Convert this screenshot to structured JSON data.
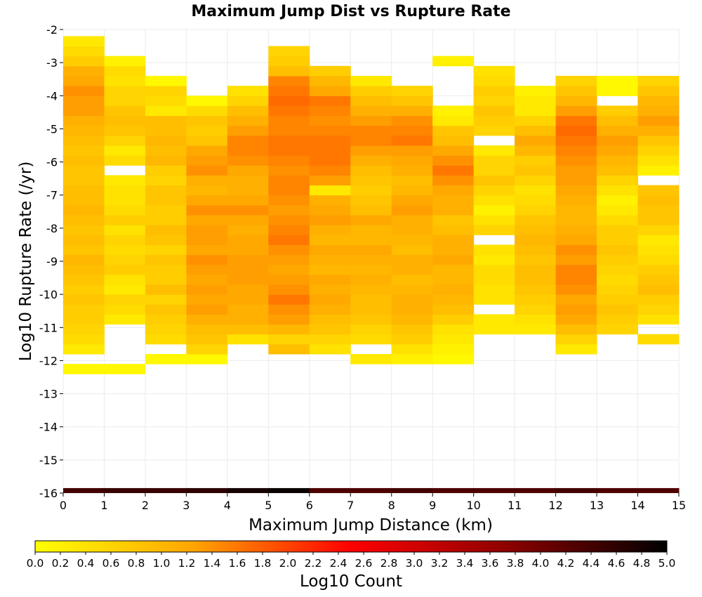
{
  "chart_data": {
    "type": "heatmap",
    "title": "Maximum Jump Dist vs Rupture Rate",
    "xlabel": "Maximum Jump Distance (km)",
    "ylabel": "Log10 Rupture Rate (/yr)",
    "xlim": [
      0,
      15
    ],
    "ylim": [
      -16,
      -2
    ],
    "x_ticks": [
      "0",
      "1",
      "2",
      "3",
      "4",
      "5",
      "6",
      "7",
      "8",
      "9",
      "10",
      "11",
      "12",
      "13",
      "14",
      "15"
    ],
    "y_ticks": [
      "-2",
      "-3",
      "-4",
      "-5",
      "-6",
      "-7",
      "-8",
      "-9",
      "-10",
      "-11",
      "-12",
      "-13",
      "-14",
      "-15",
      "-16"
    ],
    "grid": true,
    "x_bin_width": 1,
    "y_bin_height": 0.3,
    "colorbar": {
      "label": "Log10 Count",
      "min": 0.0,
      "max": 5.0,
      "ticks": [
        "0.0",
        "0.2",
        "0.4",
        "0.6",
        "0.8",
        "1.0",
        "1.2",
        "1.4",
        "1.6",
        "1.8",
        "2.0",
        "2.2",
        "2.4",
        "2.6",
        "2.8",
        "3.0",
        "3.2",
        "3.4",
        "3.6",
        "3.8",
        "4.0",
        "4.2",
        "4.4",
        "4.6",
        "4.8",
        "5.0"
      ],
      "colors": [
        "#ffff00",
        "#ffa500",
        "#ff0000",
        "#8b0000",
        "#000000"
      ]
    },
    "columns": [
      {
        "x": 0,
        "ylow": -12.4,
        "values": [
          0.1,
          0,
          0.3,
          0.5,
          0.6,
          0.7,
          0.7,
          0.8,
          0.7,
          0.8,
          0.9,
          1.0,
          0.8,
          0.9,
          0.8,
          0.9,
          1.0,
          0.9,
          0.9,
          0.8,
          0.8,
          0.9,
          0.8,
          0.9,
          1.0,
          1.1,
          1.3,
          1.3,
          1.4,
          1.2,
          1.1,
          0.7,
          0.5,
          0.3
        ]
      },
      {
        "x": 1,
        "ylow": -12.4,
        "values": [
          0.1,
          0,
          0,
          0,
          0,
          0.3,
          0.5,
          0.6,
          0.3,
          0.4,
          0.7,
          0.6,
          0.5,
          0.6,
          0.4,
          0.7,
          0.5,
          0.4,
          0.4,
          0.3,
          0,
          0.5,
          0.3,
          0.6,
          0.8,
          0.9,
          0.8,
          0.6,
          0.6,
          0.4,
          0.5,
          0.2
        ]
      },
      {
        "x": 2,
        "ylow": -12.1,
        "values": [
          0.1,
          0,
          0.5,
          0.6,
          0.7,
          0.8,
          0.6,
          0.9,
          0.7,
          0.7,
          0.8,
          0.6,
          0.8,
          0.9,
          0.7,
          0.7,
          0.8,
          0.8,
          0.6,
          0.7,
          1.0,
          0.9,
          1.0,
          0.9,
          0.9,
          0.3,
          0.5,
          0.6,
          0.1
        ]
      },
      {
        "x": 3,
        "ylow": -12.1,
        "values": [
          0.1,
          0.6,
          0.8,
          0.9,
          1.1,
          1.3,
          1.2,
          1.3,
          1.2,
          1.3,
          1.4,
          1.2,
          1.3,
          1.3,
          1.2,
          1.4,
          1.2,
          1.0,
          1.1,
          1.4,
          1.3,
          1.2,
          0.8,
          0.7,
          0.8,
          0.5,
          0.1
        ]
      },
      {
        "x": 4,
        "ylow": -11.5,
        "values": [
          0.4,
          0.9,
          1.1,
          1.1,
          1.2,
          1.2,
          1.3,
          1.3,
          1.3,
          1.2,
          1.2,
          1.1,
          1.2,
          1.4,
          1.2,
          1.1,
          1.1,
          1.2,
          1.4,
          1.5,
          1.5,
          1.3,
          1.1,
          0.9,
          0.6,
          0.4
        ]
      },
      {
        "x": 5,
        "ylow": -11.8,
        "values": [
          0.9,
          0.6,
          1.0,
          1.3,
          1.4,
          1.6,
          1.4,
          1.3,
          1.2,
          1.3,
          1.4,
          1.6,
          1.5,
          1.4,
          1.3,
          1.4,
          1.5,
          1.5,
          1.4,
          1.5,
          1.6,
          1.6,
          1.5,
          1.5,
          1.6,
          1.7,
          1.6,
          1.5,
          0.9,
          0.7,
          0.6
        ]
      },
      {
        "x": 6,
        "ylow": -11.8,
        "values": [
          0.4,
          0.6,
          0.8,
          0.9,
          1.1,
          1.2,
          1.1,
          1.2,
          1.0,
          1.1,
          1.2,
          1.0,
          1.1,
          1.3,
          1.2,
          1.1,
          0.3,
          1.3,
          1.5,
          1.6,
          1.6,
          1.6,
          1.5,
          1.4,
          1.5,
          1.6,
          1.2,
          1.0,
          0.7
        ]
      },
      {
        "x": 7,
        "ylow": -12.1,
        "values": [
          0.3,
          0,
          0.5,
          0.6,
          0.8,
          0.9,
          0.9,
          1.0,
          1.1,
          1.0,
          1.1,
          1.2,
          1.0,
          1.0,
          1.2,
          0.9,
          0.8,
          0.7,
          0.8,
          0.9,
          1.1,
          1.3,
          1.5,
          1.5,
          1.3,
          1.1,
          0.9,
          0.7,
          0.3
        ]
      },
      {
        "x": 8,
        "ylow": -12.1,
        "values": [
          0.2,
          0.4,
          0.7,
          0.8,
          1.0,
          1.1,
          1.1,
          1.0,
          0.9,
          1.1,
          1.1,
          0.9,
          1.0,
          1.1,
          1.1,
          1.3,
          1.2,
          1.0,
          0.9,
          1.1,
          1.2,
          1.3,
          1.6,
          1.5,
          1.4,
          1.1,
          0.8,
          0.6
        ]
      },
      {
        "x": 9,
        "ylow": -12.1,
        "values": [
          0.1,
          0.2,
          0.3,
          0.4,
          0.7,
          0.9,
          1.0,
          1.1,
          1.0,
          1.0,
          1.2,
          1.1,
          1.1,
          0.9,
          0.8,
          1.1,
          1.1,
          1.2,
          1.4,
          1.6,
          1.4,
          1.2,
          0.9,
          0.8,
          0.3,
          0.2,
          0,
          0,
          0,
          0,
          0.2
        ]
      },
      {
        "x": 10,
        "ylow": -11.2,
        "values": [
          0.3,
          0.3,
          0,
          0.4,
          0.4,
          0.5,
          0.5,
          0.3,
          0.4,
          0,
          0.6,
          0.4,
          0.2,
          0.4,
          0.6,
          0.8,
          0.6,
          0.6,
          0.3,
          0,
          0.6,
          0.7,
          0.8,
          0.6,
          0.7,
          0.5,
          0.4
        ]
      },
      {
        "x": 11,
        "ylow": -11.2,
        "values": [
          0.3,
          0.4,
          0.6,
          0.7,
          0.8,
          0.9,
          0.9,
          0.8,
          0.9,
          1.0,
          0.9,
          0.8,
          0.6,
          0.5,
          0.4,
          0.6,
          0.8,
          0.7,
          1.0,
          1.2,
          0.9,
          0.6,
          0.3,
          0.3,
          0.2
        ]
      },
      {
        "x": 12,
        "ylow": -11.8,
        "values": [
          0.3,
          0.6,
          0.9,
          1.2,
          1.3,
          1.2,
          1.4,
          1.5,
          1.5,
          1.3,
          1.4,
          1.2,
          1.1,
          1.0,
          1.0,
          1.1,
          1.2,
          1.3,
          1.3,
          1.4,
          1.5,
          1.6,
          1.7,
          1.6,
          1.3,
          1.0,
          0.8,
          0.6
        ]
      },
      {
        "x": 13,
        "ylow": -11.2,
        "values": [
          0.6,
          0.7,
          0.8,
          0.7,
          0.6,
          0.5,
          0.6,
          0.7,
          0.8,
          0.7,
          0.7,
          0.5,
          0.3,
          0.2,
          0.4,
          0.6,
          0.9,
          1.0,
          1.2,
          1.3,
          1.1,
          0.9,
          0.7,
          0,
          0.1,
          0.1
        ]
      },
      {
        "x": 14,
        "ylow": -11.5,
        "values": [
          0.5,
          0,
          0.4,
          0.6,
          0.7,
          0.9,
          0.8,
          0.7,
          0.5,
          0.4,
          0.3,
          0.6,
          0.8,
          0.8,
          0.9,
          0.8,
          0,
          0.2,
          0.4,
          0.6,
          0.8,
          1.1,
          1.3,
          1.1,
          1.0,
          0.8,
          0.6
        ]
      }
    ],
    "bottom_row": {
      "ylow": -16.0,
      "yhigh": -15.85,
      "values": [
        4.4,
        4.5,
        4.5,
        4.6,
        4.8,
        4.9,
        4.3,
        4.3,
        4.4,
        4.3,
        4.3,
        4.3,
        4.4,
        4.3,
        4.3
      ]
    }
  }
}
